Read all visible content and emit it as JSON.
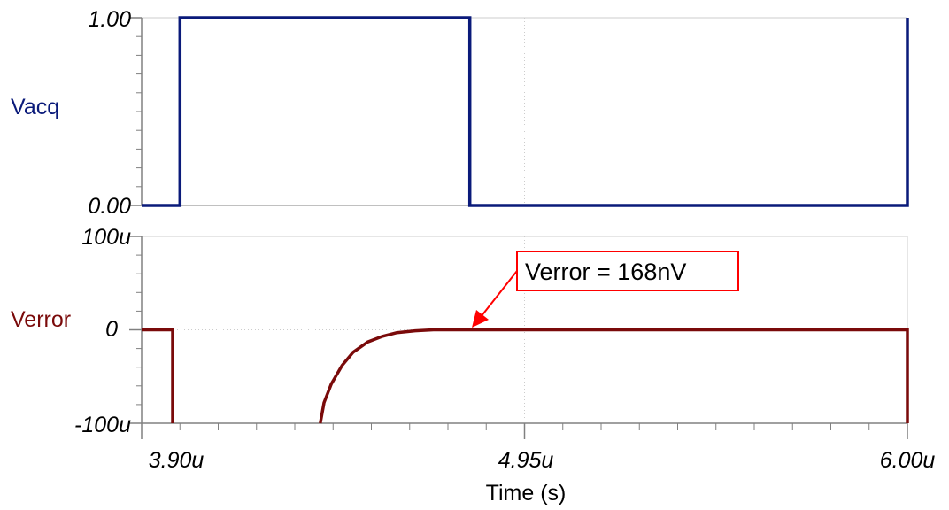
{
  "colors": {
    "vacq": "#0a1a7a",
    "verror": "#7a0a0a",
    "annotation": "#ff0000",
    "grid": "#cccccc",
    "axis": "#808080"
  },
  "chart_data": [
    {
      "type": "line",
      "ylabel": "Vacq",
      "y_tick_labels": [
        "1.00",
        "0.00"
      ],
      "ylim": [
        0,
        1
      ],
      "xlim": [
        3.9,
        6.0
      ],
      "grid": true,
      "series": [
        {
          "x": [
            3.9,
            4.005,
            4.005,
            4.8,
            4.8,
            6.0,
            6.0
          ],
          "y": [
            0,
            0,
            1,
            1,
            0,
            0,
            1
          ]
        }
      ]
    },
    {
      "type": "line",
      "ylabel": "Verror",
      "y_tick_labels": [
        "100u",
        "0",
        "-100u"
      ],
      "ylim": [
        -100,
        100
      ],
      "xlim": [
        3.9,
        6.0
      ],
      "grid": true,
      "series": [
        {
          "x": [
            3.9,
            3.985,
            3.985
          ],
          "y": [
            0,
            0,
            -100
          ]
        },
        {
          "x": [
            4.39,
            4.4,
            4.42,
            4.45,
            4.48,
            4.52,
            4.56,
            4.6,
            4.65,
            4.7,
            6.0,
            6.0
          ],
          "y": [
            -100,
            -78,
            -58,
            -38,
            -24,
            -13,
            -7,
            -3,
            -1,
            0,
            0,
            -100
          ]
        }
      ],
      "annotation": {
        "text": "Verror = 168nV",
        "x": 4.82,
        "y": 0
      }
    }
  ],
  "x_axis": {
    "tick_labels": [
      "3.90u",
      "4.95u",
      "6.00u"
    ],
    "title": "Time (s)"
  }
}
